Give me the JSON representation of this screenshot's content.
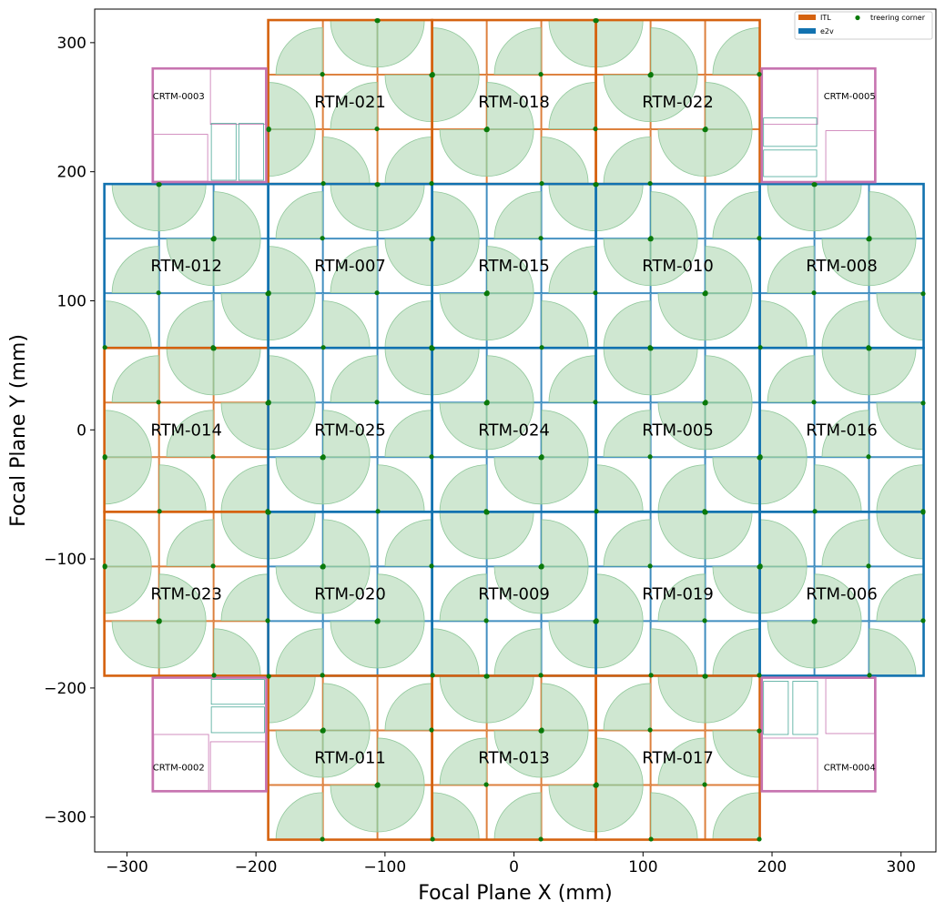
{
  "colors": {
    "itl": "#d5620f",
    "e2v": "#1272b0",
    "corner_raft": "#c774b0",
    "wavefront_sensor": "#4aa898",
    "treering_fill": "#b5dab8",
    "treering_marker": "#0a7a0a"
  },
  "chart_data": {
    "type": "scatter",
    "xlabel": "Focal Plane X (mm)",
    "ylabel": "Focal Plane Y (mm)",
    "xlim": [
      -325,
      327
    ],
    "ylim": [
      -327,
      326
    ],
    "xticks": [
      -300,
      -200,
      -100,
      0,
      100,
      200,
      300
    ],
    "yticks": [
      -300,
      -200,
      -100,
      0,
      100,
      200,
      300
    ],
    "xtick_labels": [
      "−300",
      "−200",
      "−100",
      "0",
      "100",
      "200",
      "300"
    ],
    "ytick_labels": [
      "−300",
      "−200",
      "−100",
      "0",
      "100",
      "200",
      "300"
    ],
    "legend": {
      "location": "top-right",
      "entries": [
        {
          "label": "ITL",
          "kind": "patch",
          "color": "#d5620f"
        },
        {
          "label": "e2v",
          "kind": "patch",
          "color": "#1272b0"
        },
        {
          "label": "treering corner",
          "kind": "marker",
          "color": "#0a7a0a"
        }
      ]
    },
    "raft_pitch_mm": 127,
    "sensor_pitch_mm": 42.3,
    "rafts": [
      {
        "name": "RTM-021",
        "x": -127,
        "y": 254,
        "vendor": "ITL"
      },
      {
        "name": "RTM-018",
        "x": 0,
        "y": 254,
        "vendor": "ITL"
      },
      {
        "name": "RTM-022",
        "x": 127,
        "y": 254,
        "vendor": "ITL"
      },
      {
        "name": "RTM-012",
        "x": -254,
        "y": 127,
        "vendor": "e2v"
      },
      {
        "name": "RTM-007",
        "x": -127,
        "y": 127,
        "vendor": "e2v"
      },
      {
        "name": "RTM-015",
        "x": 0,
        "y": 127,
        "vendor": "e2v"
      },
      {
        "name": "RTM-010",
        "x": 127,
        "y": 127,
        "vendor": "e2v"
      },
      {
        "name": "RTM-008",
        "x": 254,
        "y": 127,
        "vendor": "e2v"
      },
      {
        "name": "RTM-014",
        "x": -254,
        "y": 0,
        "vendor": "ITL"
      },
      {
        "name": "RTM-025",
        "x": -127,
        "y": 0,
        "vendor": "e2v"
      },
      {
        "name": "RTM-024",
        "x": 0,
        "y": 0,
        "vendor": "e2v"
      },
      {
        "name": "RTM-005",
        "x": 127,
        "y": 0,
        "vendor": "e2v"
      },
      {
        "name": "RTM-016",
        "x": 254,
        "y": 0,
        "vendor": "e2v"
      },
      {
        "name": "RTM-023",
        "x": -254,
        "y": -127,
        "vendor": "ITL"
      },
      {
        "name": "RTM-020",
        "x": -127,
        "y": -127,
        "vendor": "e2v"
      },
      {
        "name": "RTM-009",
        "x": 0,
        "y": -127,
        "vendor": "e2v"
      },
      {
        "name": "RTM-019",
        "x": 127,
        "y": -127,
        "vendor": "e2v"
      },
      {
        "name": "RTM-006",
        "x": 254,
        "y": -127,
        "vendor": "e2v"
      },
      {
        "name": "RTM-011",
        "x": -127,
        "y": -254,
        "vendor": "ITL"
      },
      {
        "name": "RTM-013",
        "x": 0,
        "y": -254,
        "vendor": "ITL"
      },
      {
        "name": "RTM-017",
        "x": 127,
        "y": -254,
        "vendor": "ITL"
      }
    ],
    "corner_rafts": [
      {
        "name": "CRTM-0003",
        "x": -236,
        "y": 236,
        "label_x": -280,
        "label_y": 259,
        "layout": "top-left"
      },
      {
        "name": "CRTM-0005",
        "x": 236,
        "y": 236,
        "label_x": 240,
        "label_y": 259,
        "layout": "top-right"
      },
      {
        "name": "CRTM-0002",
        "x": -236,
        "y": -236,
        "label_x": -280,
        "label_y": -261,
        "layout": "bottom-left"
      },
      {
        "name": "CRTM-0004",
        "x": 236,
        "y": -236,
        "label_x": 240,
        "label_y": -261,
        "layout": "bottom-right"
      }
    ]
  }
}
